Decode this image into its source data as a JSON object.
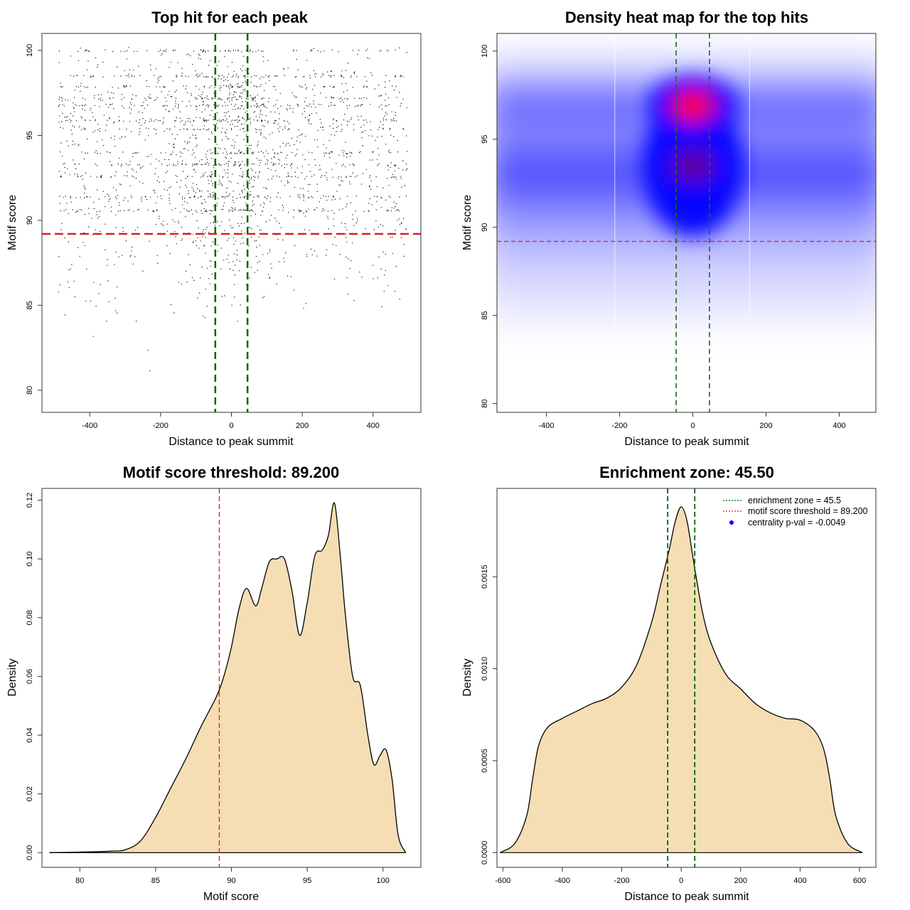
{
  "chart_data": [
    {
      "id": "scatter",
      "type": "scatter",
      "title": "Top hit for each peak",
      "xlabel": "Distance to peak summit",
      "ylabel": "Motif score",
      "xlim": [
        -535,
        535
      ],
      "ylim": [
        78.7,
        101.0
      ],
      "xticks": [
        -400,
        -200,
        0,
        200,
        400
      ],
      "yticks": [
        80,
        85,
        90,
        95,
        100
      ],
      "points_note": "~6000 top hits, each at distance in [-500, 500] and motif score mostly 82-100, denser near score 97 and distance 0",
      "score_bands": [
        100,
        98.5,
        97.9,
        97.2,
        96.8,
        95.9,
        95.4,
        94.0,
        93.3,
        92.6,
        91.4,
        90.6
      ],
      "vlines": [
        -45.5,
        45.5
      ],
      "hline": 89.2,
      "vline_color": "#006400",
      "hline_color": "#e41a1c"
    },
    {
      "id": "heatmap",
      "type": "heatmap",
      "title": "Density heat map for the top hits",
      "xlabel": "Distance to peak summit",
      "ylabel": "Motif score",
      "xlim": [
        -535,
        500
      ],
      "ylim": [
        79.5,
        101.0
      ],
      "xticks": [
        -400,
        -200,
        0,
        200,
        400
      ],
      "yticks": [
        80,
        85,
        90,
        95,
        100
      ],
      "hotspot": {
        "x": 0,
        "y": 96.9
      },
      "secondary_hotspot": {
        "x": 0,
        "y": 93.5
      },
      "colors": [
        "#ffffff",
        "#0000ff",
        "#ff0000"
      ],
      "vlines": [
        -45.5,
        45.5
      ],
      "hline": 89.2
    },
    {
      "id": "score-density",
      "type": "area",
      "title": "Motif score threshold: 89.200",
      "xlabel": "Motif score",
      "ylabel": "Density",
      "xlim": [
        77.5,
        102.5
      ],
      "ylim": [
        -0.005,
        0.124
      ],
      "xticks": [
        80,
        85,
        90,
        95,
        100
      ],
      "yticks": [
        0.0,
        0.02,
        0.04,
        0.06,
        0.08,
        0.1,
        0.12
      ],
      "ytick_labels": [
        "0.00",
        "0.02",
        "0.04",
        "0.06",
        "0.08",
        "0.10",
        "0.12"
      ],
      "x": [
        78,
        80,
        82,
        83,
        84,
        85,
        86,
        87,
        88,
        89,
        89.5,
        90,
        90.5,
        91,
        91.6,
        92,
        92.5,
        93,
        93.5,
        94,
        94.5,
        95,
        95.5,
        96,
        96.4,
        96.8,
        97.2,
        97.5,
        98,
        98.5,
        99,
        99.4,
        99.8,
        100.2,
        100.6,
        101,
        101.5
      ],
      "y": [
        0.0,
        0.0002,
        0.0005,
        0.001,
        0.004,
        0.012,
        0.022,
        0.032,
        0.043,
        0.053,
        0.06,
        0.07,
        0.083,
        0.09,
        0.084,
        0.09,
        0.099,
        0.1,
        0.1,
        0.089,
        0.074,
        0.085,
        0.101,
        0.103,
        0.108,
        0.119,
        0.1,
        0.082,
        0.06,
        0.057,
        0.04,
        0.03,
        0.033,
        0.035,
        0.025,
        0.006,
        0.0
      ],
      "fill": "#f5deb3",
      "vline": 89.2,
      "vline_color": "#e41a1c"
    },
    {
      "id": "distance-density",
      "type": "area",
      "title": "Enrichment zone: 45.50",
      "xlabel": "Distance to peak summit",
      "ylabel": "Density",
      "xlim": [
        -620,
        655
      ],
      "ylim": [
        -8e-05,
        0.00198
      ],
      "xticks": [
        -600,
        -400,
        -200,
        0,
        200,
        400,
        600
      ],
      "yticks": [
        0.0,
        0.0005,
        0.001,
        0.0015
      ],
      "ytick_labels": [
        "0.0000",
        "0.0005",
        "0.0010",
        "0.0015"
      ],
      "x": [
        -610,
        -560,
        -520,
        -500,
        -480,
        -450,
        -400,
        -350,
        -300,
        -250,
        -200,
        -150,
        -100,
        -70,
        -40,
        -20,
        0,
        20,
        40,
        70,
        100,
        150,
        200,
        250,
        300,
        350,
        400,
        450,
        480,
        500,
        520,
        560,
        610
      ],
      "y": [
        0.0,
        5e-05,
        0.0002,
        0.0004,
        0.00058,
        0.00068,
        0.00073,
        0.00077,
        0.00081,
        0.00084,
        0.0009,
        0.00102,
        0.00125,
        0.00145,
        0.00165,
        0.0018,
        0.00188,
        0.0018,
        0.0016,
        0.00132,
        0.00114,
        0.00097,
        0.00089,
        0.00081,
        0.00076,
        0.00073,
        0.00072,
        0.00066,
        0.00056,
        0.0004,
        0.0002,
        5e-05,
        0.0
      ],
      "fill": "#f5deb3",
      "vlines": [
        -45.5,
        45.5
      ],
      "vline_color": "#006400",
      "legend_position": "top-right",
      "legend": [
        {
          "label": "enrichment zone = 45.5",
          "color": "#006400",
          "symbol": "dotted-line"
        },
        {
          "label": "motif score threshold = 89.200",
          "color": "#e41a1c",
          "symbol": "dotted-line"
        },
        {
          "label": "centrality p-val = -0.0049",
          "color": "#0000ff",
          "symbol": "dot"
        }
      ]
    }
  ]
}
